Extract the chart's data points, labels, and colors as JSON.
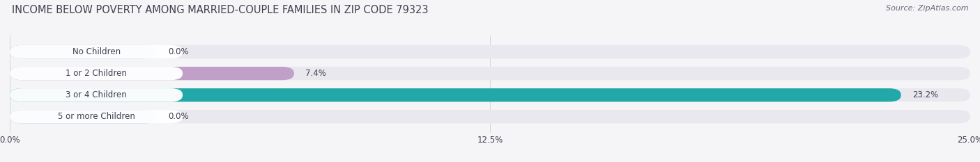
{
  "title": "INCOME BELOW POVERTY AMONG MARRIED-COUPLE FAMILIES IN ZIP CODE 79323",
  "source": "Source: ZipAtlas.com",
  "categories": [
    "No Children",
    "1 or 2 Children",
    "3 or 4 Children",
    "5 or more Children"
  ],
  "values": [
    0.0,
    7.4,
    23.2,
    0.0
  ],
  "bar_colors": [
    "#9ab5d9",
    "#c0a0c8",
    "#22a8a8",
    "#9ab0d8"
  ],
  "bar_bg_color": "#e8e8ee",
  "label_bg_color": "#ffffff",
  "xlim": [
    0,
    25.0
  ],
  "xticks": [
    0.0,
    12.5,
    25.0
  ],
  "xtick_labels": [
    "0.0%",
    "12.5%",
    "25.0%"
  ],
  "title_fontsize": 10.5,
  "label_fontsize": 8.5,
  "value_fontsize": 8.5,
  "source_fontsize": 8,
  "bar_height": 0.62,
  "background_color": "#f5f5f8",
  "title_color": "#404050",
  "label_color": "#404050",
  "value_color": "#404050",
  "source_color": "#666677"
}
